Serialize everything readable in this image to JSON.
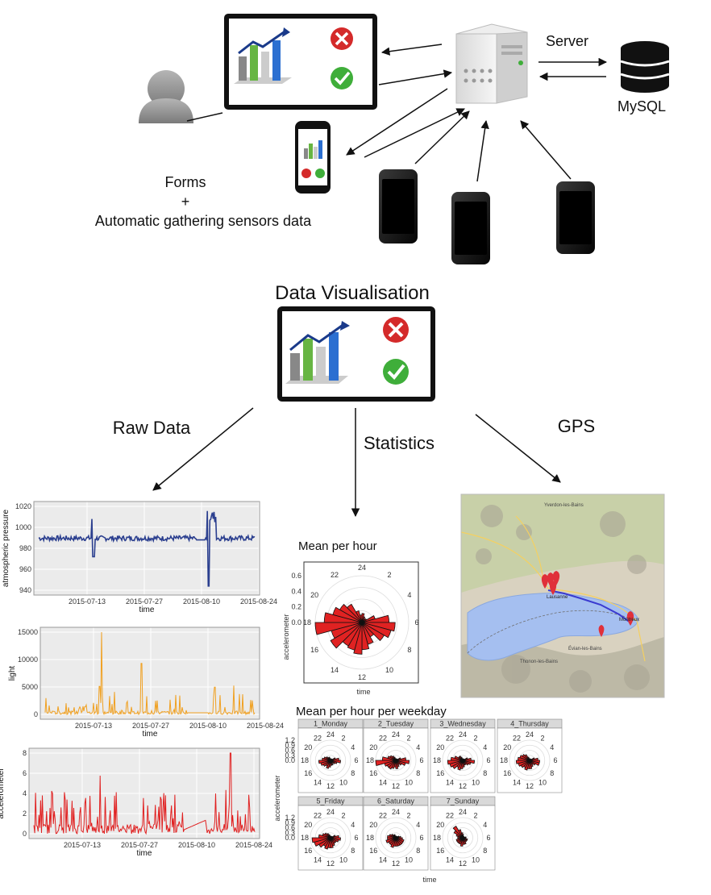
{
  "labels": {
    "server": "Server",
    "mysql": "MySQL",
    "forms_line1": "Forms",
    "forms_line2": "+",
    "forms_line3": "Automatic gathering sensors data",
    "data_visualisation": "Data Visualisation",
    "raw_data": "Raw Data",
    "statistics": "Statistics",
    "gps": "GPS"
  },
  "raw_charts": {
    "x_ticks": [
      "2015-07-13",
      "2015-07-27",
      "2015-08-10",
      "2015-08-24"
    ],
    "x_label": "time",
    "pressure": {
      "y_label": "atmospheric pressure",
      "y_ticks": [
        "940",
        "960",
        "980",
        "1000",
        "1020"
      ],
      "color": "#2b3f8f"
    },
    "light": {
      "y_label": "light",
      "y_ticks": [
        "0",
        "5000",
        "10000",
        "15000"
      ],
      "color": "#f0a020"
    },
    "accel": {
      "y_label": "accelerometer",
      "y_ticks": [
        "0",
        "2",
        "4",
        "6",
        "8"
      ],
      "color": "#e02020"
    }
  },
  "polar_main": {
    "title": "Mean per hour",
    "y_label": "accelerometer",
    "x_label": "time",
    "radial_ticks": [
      "0.0",
      "0.2",
      "0.4",
      "0.6"
    ],
    "hour_labels": [
      "24",
      "2",
      "4",
      "6",
      "8",
      "10",
      "12",
      "14",
      "16",
      "18",
      "20",
      "22"
    ],
    "values": [
      0.12,
      0.08,
      0.06,
      0.07,
      0.18,
      0.36,
      0.44,
      0.4,
      0.34,
      0.22,
      0.3,
      0.36,
      0.42,
      0.38,
      0.36,
      0.48,
      0.42,
      0.62,
      0.5,
      0.4,
      0.34,
      0.28,
      0.16,
      0.1
    ],
    "fill": "#e02222"
  },
  "weekday": {
    "title": "Mean per hour per weekday",
    "y_label": "accelerometer",
    "x_label": "time",
    "radial_ticks": [
      "0.0",
      "0.3",
      "0.6",
      "0.9",
      "1.2"
    ],
    "hour_labels": [
      "24",
      "2",
      "4",
      "6",
      "8",
      "10",
      "12",
      "14",
      "16",
      "18",
      "20",
      "22"
    ],
    "panels": [
      {
        "label": "1_Monday",
        "values": [
          0.1,
          0.1,
          0.1,
          0.1,
          0.3,
          0.5,
          0.6,
          0.4,
          0.3,
          0.2,
          0.3,
          0.3,
          0.4,
          0.5,
          0.4,
          0.5,
          0.6,
          0.7,
          0.5,
          0.4,
          0.3,
          0.2,
          0.2,
          0.1
        ]
      },
      {
        "label": "2_Tuesday",
        "values": [
          0.1,
          0.1,
          0.1,
          0.1,
          0.3,
          0.6,
          0.8,
          0.6,
          0.4,
          0.3,
          0.4,
          0.5,
          0.4,
          0.5,
          0.6,
          0.6,
          0.7,
          1.2,
          0.8,
          0.5,
          0.4,
          0.3,
          0.2,
          0.1
        ]
      },
      {
        "label": "3_Wednesday",
        "values": [
          0.1,
          0.1,
          0.1,
          0.1,
          0.3,
          0.5,
          0.7,
          0.5,
          0.4,
          0.3,
          0.3,
          0.4,
          0.5,
          0.6,
          0.5,
          0.7,
          0.8,
          0.9,
          0.7,
          0.5,
          0.3,
          0.3,
          0.2,
          0.1
        ]
      },
      {
        "label": "4_Thursday",
        "values": [
          0.1,
          0.1,
          0.1,
          0.1,
          0.3,
          0.5,
          0.6,
          0.6,
          0.4,
          0.3,
          0.4,
          0.5,
          0.5,
          0.6,
          0.5,
          0.6,
          0.7,
          0.8,
          0.7,
          0.6,
          0.5,
          0.4,
          0.2,
          0.1
        ]
      },
      {
        "label": "5_Friday",
        "values": [
          0.1,
          0.1,
          0.1,
          0.1,
          0.3,
          0.5,
          0.6,
          0.5,
          0.4,
          0.4,
          0.5,
          0.6,
          0.6,
          0.7,
          0.6,
          0.8,
          1.0,
          1.1,
          0.7,
          0.5,
          0.4,
          0.3,
          0.2,
          0.1
        ]
      },
      {
        "label": "6_Saturday",
        "values": [
          0.1,
          0.1,
          0.1,
          0.1,
          0.2,
          0.3,
          0.4,
          0.5,
          0.5,
          0.5,
          0.5,
          0.5,
          0.5,
          0.6,
          0.5,
          0.5,
          0.6,
          0.5,
          0.5,
          0.4,
          0.3,
          0.2,
          0.2,
          0.1
        ]
      },
      {
        "label": "7_Sunday",
        "values": [
          0.2,
          0.1,
          0.1,
          0.1,
          0.1,
          0.2,
          0.2,
          0.3,
          0.3,
          0.3,
          0.4,
          0.4,
          0.5,
          0.4,
          0.4,
          0.4,
          0.4,
          0.3,
          0.3,
          0.4,
          0.6,
          0.8,
          0.5,
          0.3
        ]
      }
    ],
    "fill": "#e02222"
  },
  "map": {
    "places": [
      "Yverdon-les-Bains",
      "Lausanne",
      "Thonon-les-Bains",
      "Montreux",
      "Évian-les-Bains"
    ],
    "route_color": "#3a3ad0",
    "marker_color": "#e0303a",
    "lake_color": "#a5bff0"
  },
  "colors": {
    "cross": "#d42a2a",
    "check": "#3fae3a",
    "bar_green": "#67b543",
    "bar_blue": "#2b6fd1",
    "bar_grey": "#888888",
    "arrow": "#1a3a8a"
  }
}
